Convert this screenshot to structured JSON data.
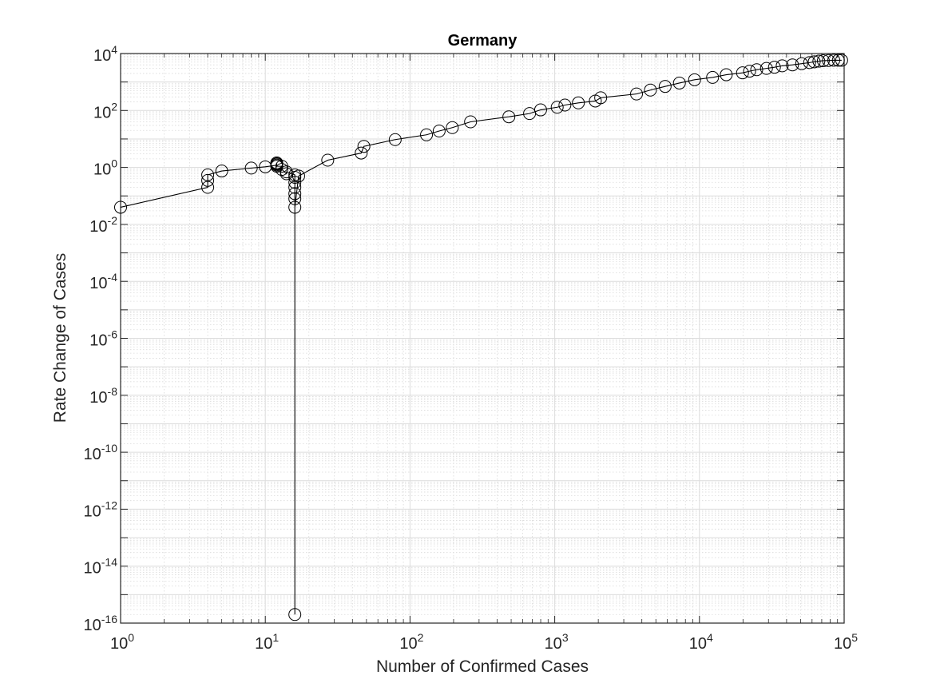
{
  "chart_data": {
    "type": "line",
    "title": "Germany",
    "xlabel": "Number of Confirmed Cases",
    "ylabel": "Rate Change of Cases",
    "xscale": "log",
    "yscale": "log",
    "xlim": [
      1,
      100000
    ],
    "ylim": [
      1e-16,
      10000
    ],
    "grid": true,
    "minor_grid": true,
    "marker": "open-circle",
    "line_color": "#000000",
    "x_ticks": [
      {
        "base": "10",
        "exp": "0"
      },
      {
        "base": "10",
        "exp": "1"
      },
      {
        "base": "10",
        "exp": "2"
      },
      {
        "base": "10",
        "exp": "3"
      },
      {
        "base": "10",
        "exp": "4"
      },
      {
        "base": "10",
        "exp": "5"
      }
    ],
    "y_ticks": [
      {
        "base": "10",
        "exp": "4"
      },
      {
        "base": "10",
        "exp": "2"
      },
      {
        "base": "10",
        "exp": "0"
      },
      {
        "base": "10",
        "exp": "-2"
      },
      {
        "base": "10",
        "exp": "-4"
      },
      {
        "base": "10",
        "exp": "-6"
      },
      {
        "base": "10",
        "exp": "-8"
      },
      {
        "base": "10",
        "exp": "-10"
      },
      {
        "base": "10",
        "exp": "-12"
      },
      {
        "base": "10",
        "exp": "-14"
      },
      {
        "base": "10",
        "exp": "-16"
      }
    ],
    "x": [
      1,
      4,
      4,
      4,
      5,
      8,
      10,
      12,
      12,
      12,
      12,
      12,
      13,
      13,
      14,
      14,
      16,
      16,
      16,
      16,
      16,
      16,
      16,
      16,
      17,
      27,
      46,
      48,
      79,
      130,
      159,
      196,
      262,
      482,
      670,
      799,
      1040,
      1176,
      1457,
      1908,
      2078,
      3675,
      4585,
      5795,
      7272,
      9257,
      12327,
      15320,
      19848,
      22213,
      24873,
      29056,
      32986,
      37323,
      43938,
      50871,
      57695,
      62095,
      66885,
      71808,
      77872,
      84794,
      91159,
      96092
    ],
    "y": [
      0.04,
      0.2,
      0.35,
      0.55,
      0.75,
      0.95,
      1.05,
      1.2,
      1.35,
      1.45,
      1.3,
      1.1,
      1.1,
      0.85,
      0.6,
      0.7,
      0.55,
      0.45,
      0.3,
      0.2,
      0.12,
      0.08,
      2e-16,
      0.04,
      0.5,
      1.8,
      3.2,
      5.5,
      9.5,
      14,
      19,
      25,
      40,
      60,
      78,
      105,
      130,
      155,
      185,
      215,
      280,
      380,
      520,
      700,
      920,
      1200,
      1450,
      1800,
      2100,
      2400,
      2700,
      3000,
      3300,
      3700,
      4000,
      4400,
      4800,
      5100,
      5400,
      5600,
      5700,
      5800,
      5800,
      5800
    ]
  }
}
